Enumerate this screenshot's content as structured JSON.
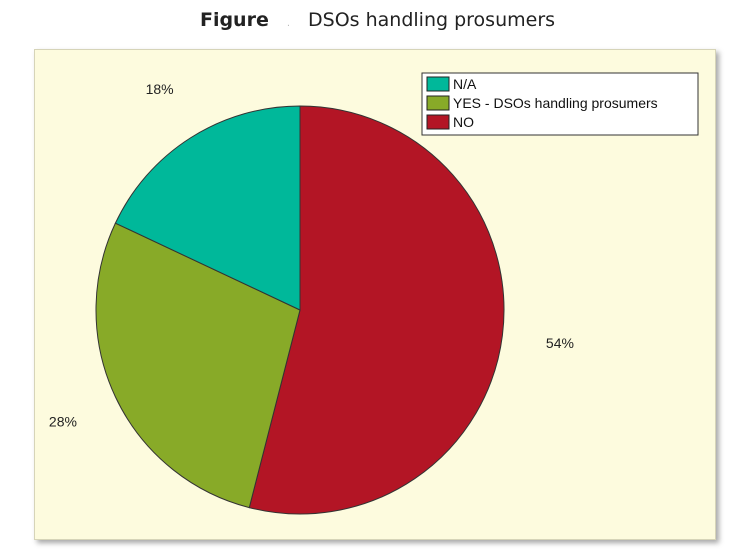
{
  "figure": {
    "lead": "Figure",
    "title": "DSOs handling prosumers"
  },
  "chart_data": {
    "type": "pie",
    "title": "DSOs handling prosumers",
    "slices": [
      {
        "label": "N/A",
        "value": 18,
        "display": "18%",
        "color": "#00b89a"
      },
      {
        "label": "YES - DSOs handling prosumers",
        "value": 28,
        "display": "28%",
        "color": "#88aa28"
      },
      {
        "label": "NO",
        "value": 54,
        "display": "54%",
        "color": "#b31525"
      }
    ],
    "legend_position": "top-right",
    "background": "#fdfbde"
  }
}
